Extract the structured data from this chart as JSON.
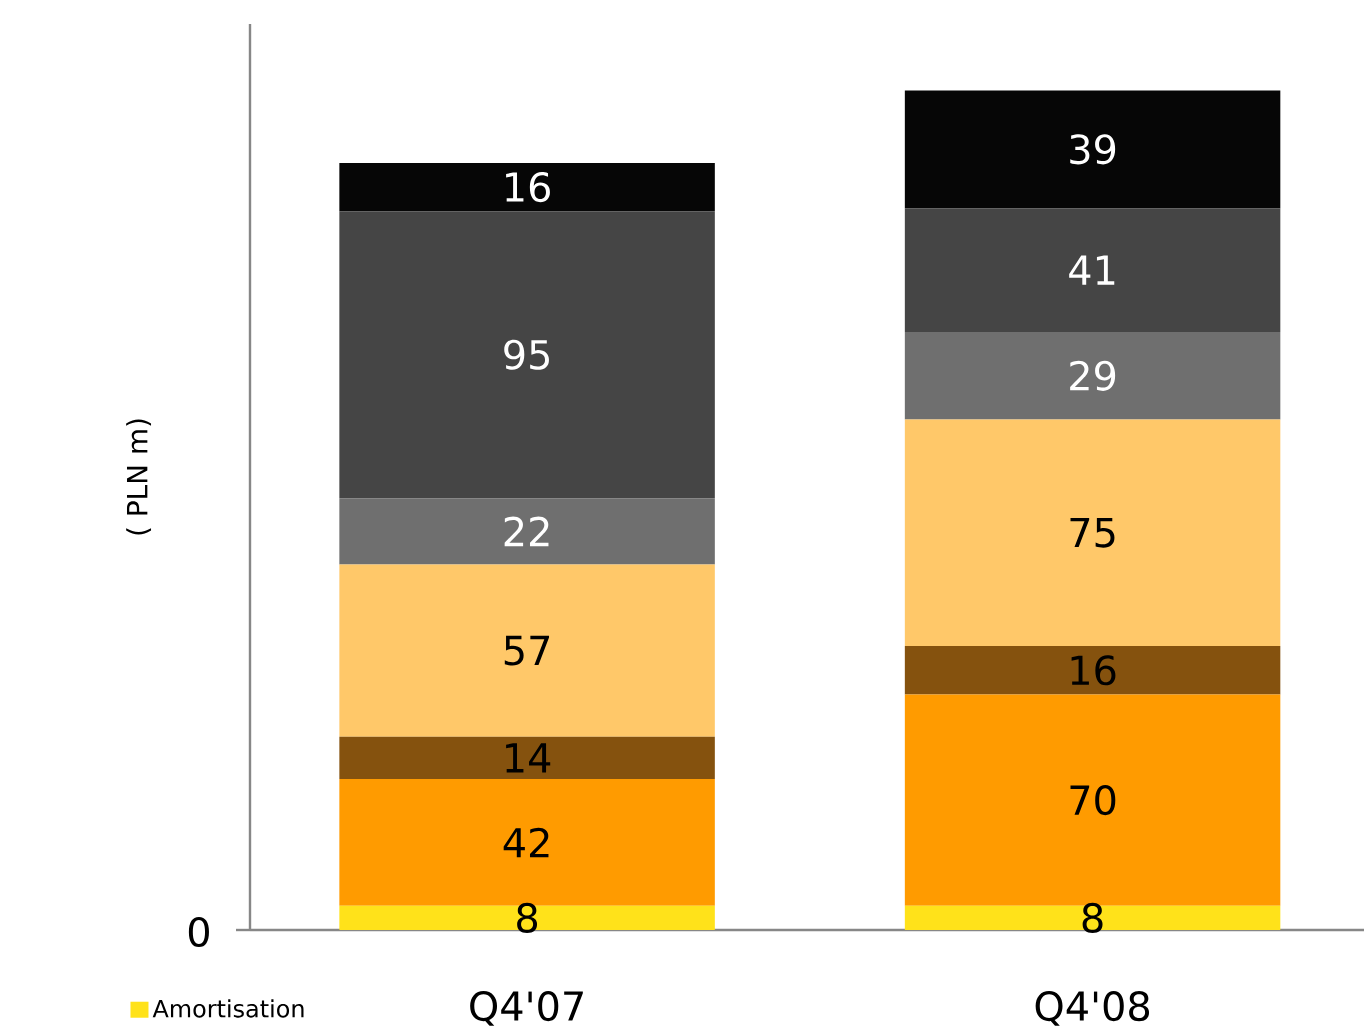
{
  "chart_data": {
    "type": "bar",
    "stacked": true,
    "categories": [
      "Q4'07",
      "Q4'08"
    ],
    "ylabel": "( PLN m)",
    "ylim": [
      0,
      300
    ],
    "yticks": [
      {
        "value": 0,
        "label": null
      }
    ],
    "annotations": [
      "0"
    ],
    "data_labels": true,
    "legend": "bottom left",
    "series": [
      {
        "name": "Amortisation",
        "color": "#ffe21a",
        "values": [
          8,
          8
        ]
      },
      {
        "color": "#ff9b00",
        "values": [
          42,
          70
        ]
      },
      {
        "color": "#85520e",
        "values": [
          14,
          16
        ]
      },
      {
        "color": "#ffc869",
        "values": [
          57,
          75
        ]
      },
      {
        "color": "#6f6f6f",
        "values": [
          22,
          29
        ]
      },
      {
        "color": "#454545",
        "values": [
          95,
          41
        ]
      },
      {
        "color": "#060606",
        "values": [
          16,
          39
        ]
      }
    ]
  }
}
